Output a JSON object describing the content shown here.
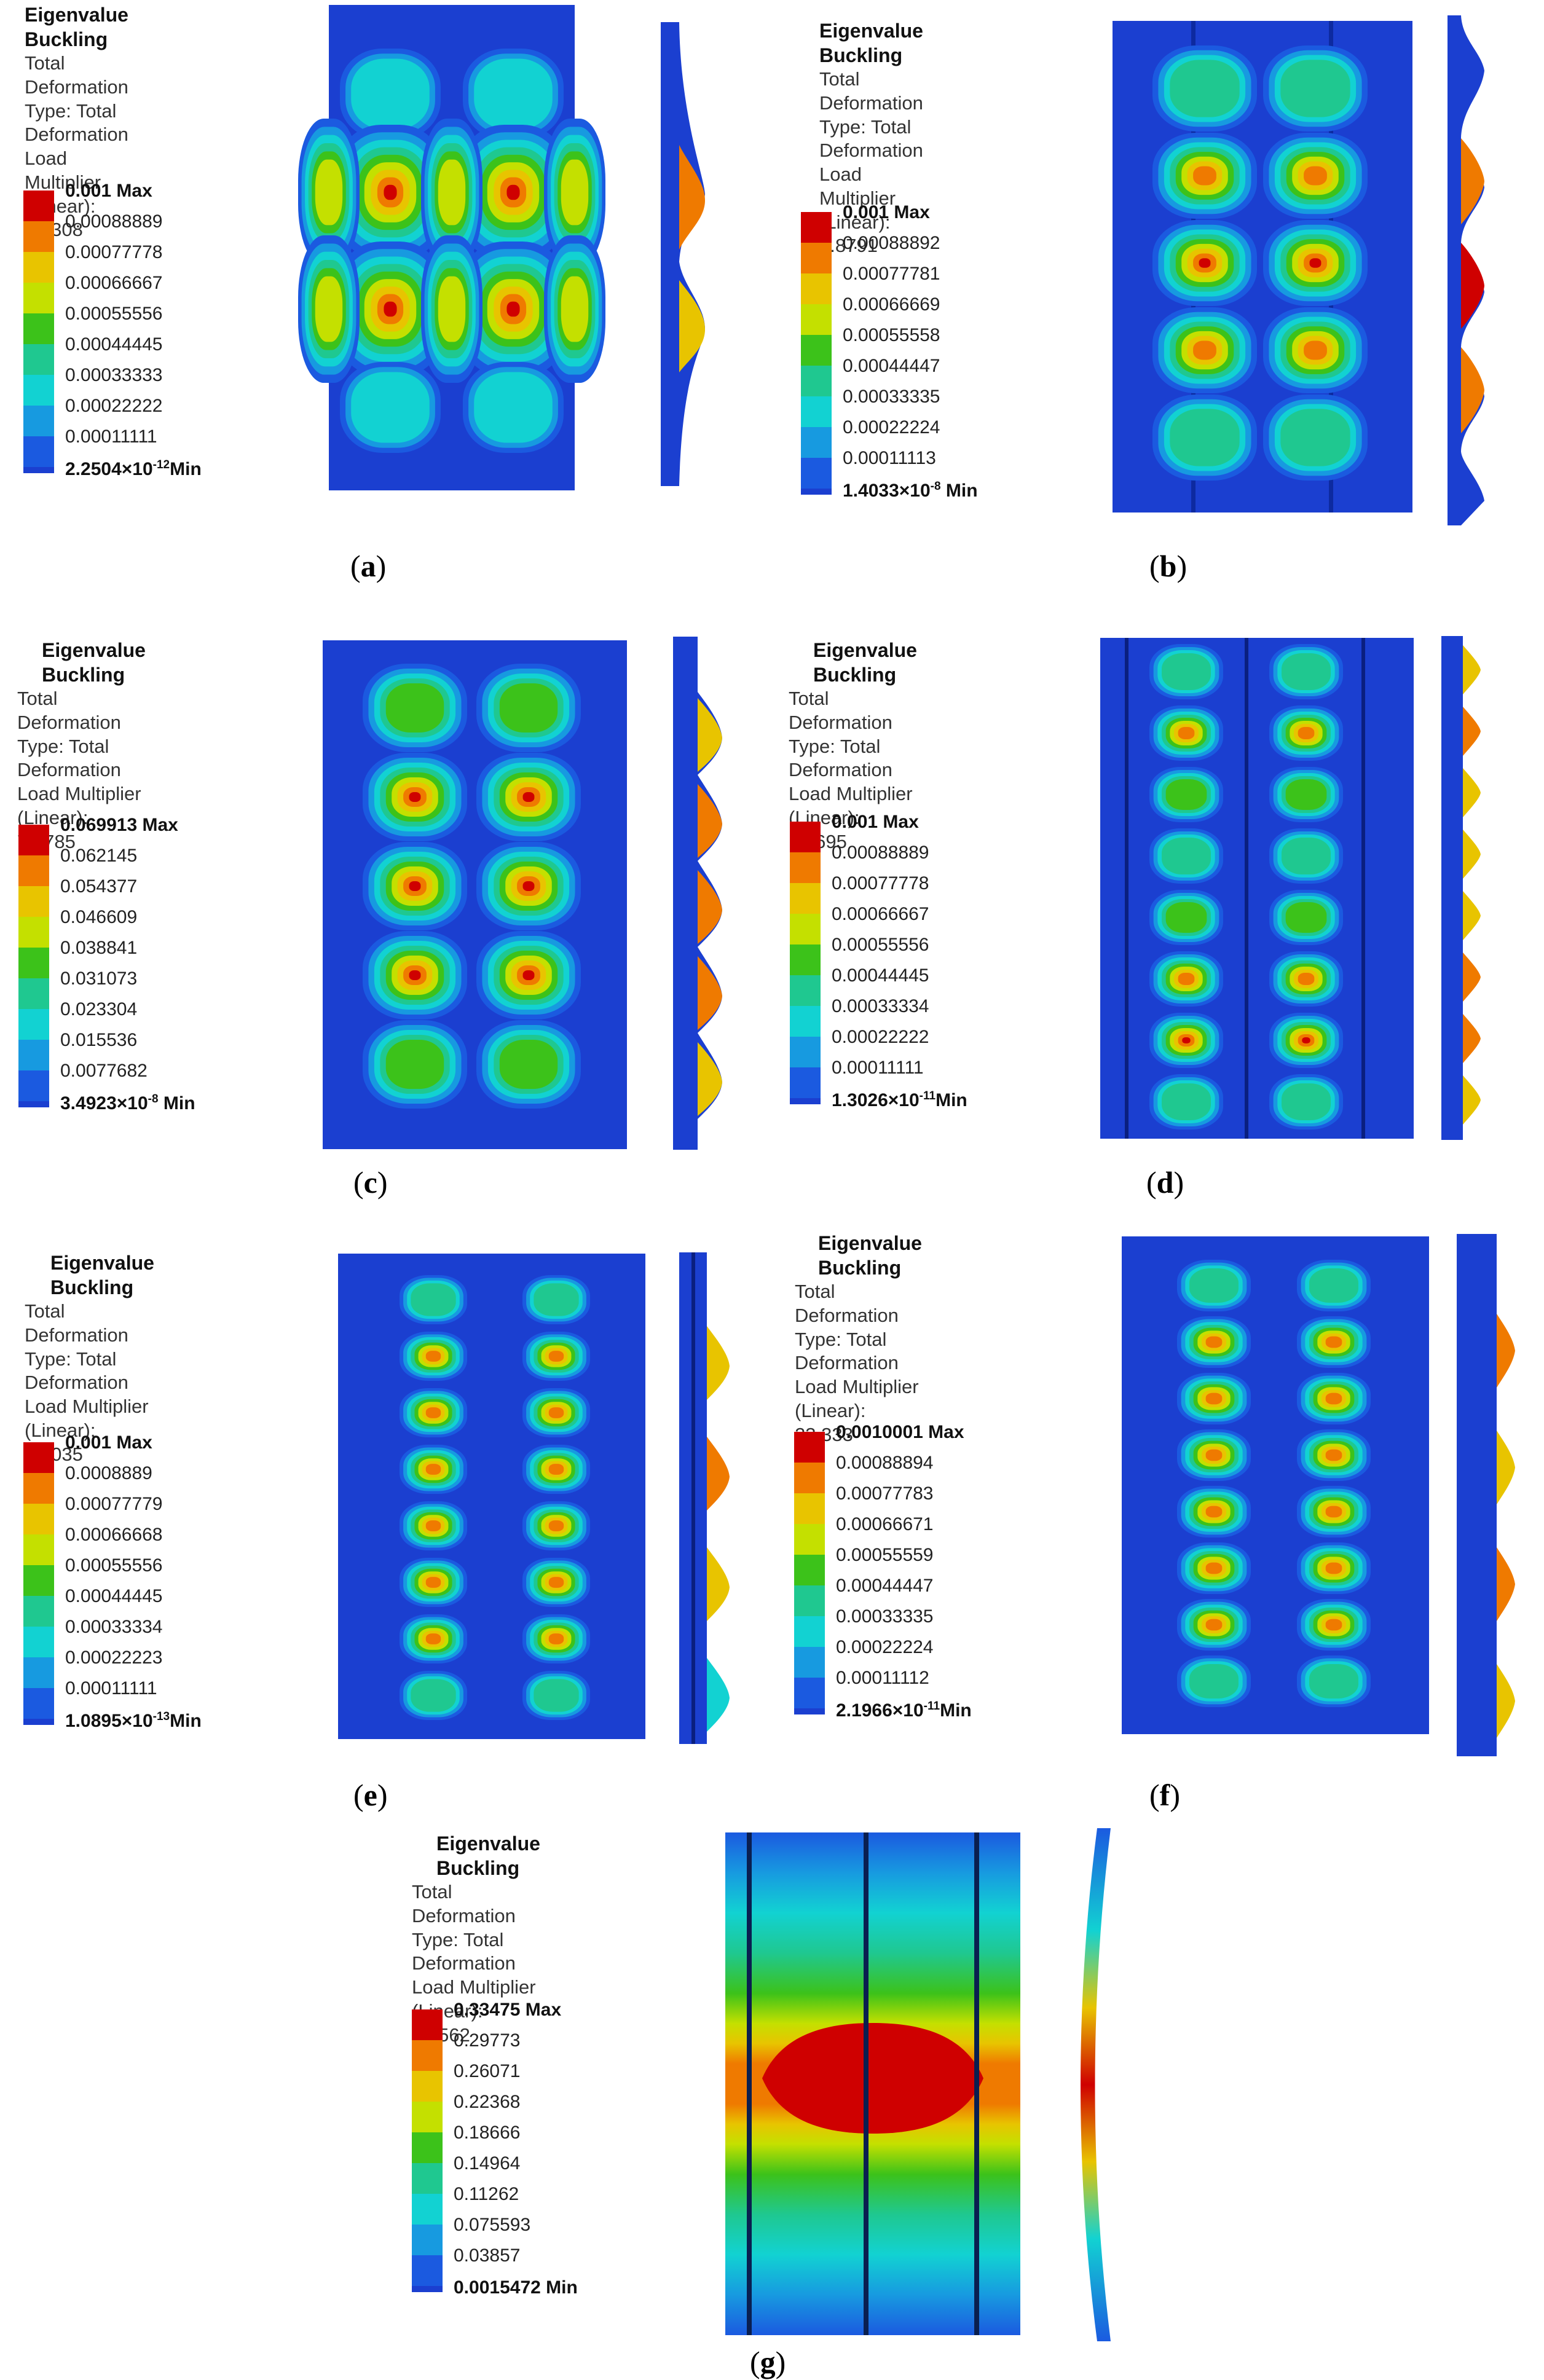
{
  "colormap": [
    "#cf0000",
    "#ef7a00",
    "#e8c400",
    "#c4e000",
    "#3cc21a",
    "#1fc890",
    "#12d2d2",
    "#179ae0",
    "#1b5ae0"
  ],
  "panels": [
    {
      "id": "a",
      "caption": "a",
      "title": "Eigenvalue Buckling",
      "line1": "Total Deformation",
      "line2": "Type: Total Deformation",
      "line3": "Load Multiplier (Linear): 8.1308",
      "legend": [
        "0.001 Max",
        "0.00088889",
        "0.00077778",
        "0.00066667",
        "0.00055556",
        "0.00044445",
        "0.00033333",
        "0.00022222",
        "0.00011111"
      ],
      "min_base": "2.2504×10",
      "min_exp": "-12",
      "min_suffix": "Min"
    },
    {
      "id": "b",
      "caption": "b",
      "title": "Eigenvalue Buckling",
      "line1": "Total Deformation",
      "line2": "Type: Total Deformation",
      "line3": "Load Multiplier (Linear): 8.8791",
      "legend": [
        "0.001 Max",
        "0.00088892",
        "0.00077781",
        "0.00066669",
        "0.00055558",
        "0.00044447",
        "0.00033335",
        "0.00022224",
        "0.00011113"
      ],
      "min_base": "1.4033×10",
      "min_exp": "-8",
      "min_suffix": " Min"
    },
    {
      "id": "c",
      "caption": "c",
      "title": "Eigenvalue Buckling",
      "line1": "Total Deformation",
      "line2": "Type: Total Deformation",
      "line3": "Load Multiplier (Linear): 7.7785",
      "legend": [
        "0.069913 Max",
        "0.062145",
        "0.054377",
        "0.046609",
        "0.038841",
        "0.031073",
        "0.023304",
        "0.015536",
        "0.0077682"
      ],
      "min_base": "3.4923×10",
      "min_exp": "-8",
      "min_suffix": " Min"
    },
    {
      "id": "d",
      "caption": "d",
      "title": "Eigenvalue Buckling",
      "line1": "Total Deformation",
      "line2": "Type: Total Deformation",
      "line3": "Load Multiplier (Linear): 17.695",
      "legend": [
        "0.001 Max",
        "0.00088889",
        "0.00077778",
        "0.00066667",
        "0.00055556",
        "0.00044445",
        "0.00033334",
        "0.00022222",
        "0.00011111"
      ],
      "min_base": "1.3026×10",
      "min_exp": "-11",
      "min_suffix": "Min"
    },
    {
      "id": "e",
      "caption": "e",
      "title": "Eigenvalue Buckling",
      "line1": "Total Deformation",
      "line2": "Type: Total Deformation",
      "line3": "Load Multiplier (Linear): 24.035",
      "legend": [
        "0.001 Max",
        "0.0008889",
        "0.00077779",
        "0.00066668",
        "0.00055556",
        "0.00044445",
        "0.00033334",
        "0.00022223",
        "0.00011111"
      ],
      "min_base": "1.0895×10",
      "min_exp": "-13",
      "min_suffix": "Min"
    },
    {
      "id": "f",
      "caption": "f",
      "title": "Eigenvalue Buckling",
      "line1": "Total Deformation",
      "line2": "Type: Total Deformation",
      "line3": "Load Multiplier (Linear): 23.333",
      "legend": [
        "0.0010001 Max",
        "0.00088894",
        "0.00077783",
        "0.00066671",
        "0.00055559",
        "0.00044447",
        "0.00033335",
        "0.00022224",
        "0.00011112"
      ],
      "min_base": "2.1966×10",
      "min_exp": "-11",
      "min_suffix": "Min"
    },
    {
      "id": "g",
      "caption": "g",
      "title": "Eigenvalue Buckling",
      "line1": "Total Deformation",
      "line2": "Type: Total Deformation",
      "line3": "Load Multiplier (Linear): 13.562",
      "legend": [
        "0.33475 Max",
        "0.29773",
        "0.26071",
        "0.22368",
        "0.18666",
        "0.14964",
        "0.11262",
        "0.075593",
        "0.03857"
      ],
      "min_base": "0.0015472",
      "min_exp": "",
      "min_suffix": " Min"
    }
  ]
}
